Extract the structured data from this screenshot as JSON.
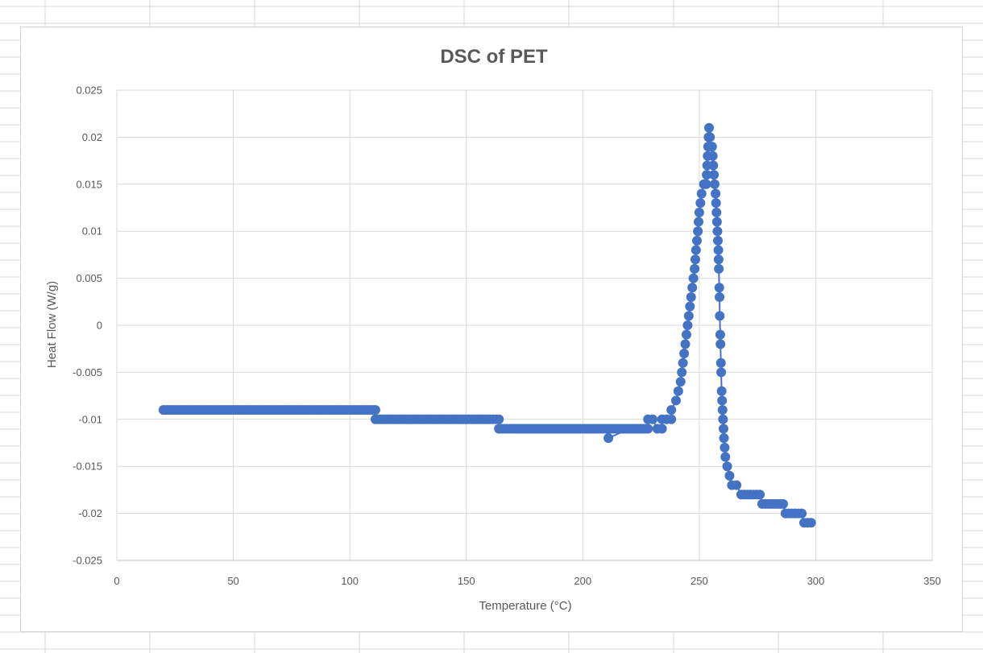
{
  "chart_data": {
    "type": "scatter",
    "title": "DSC of PET",
    "xlabel": "Temperature (°C)",
    "ylabel": "Heat Flow (W/g)",
    "xlim": [
      0,
      350
    ],
    "ylim": [
      -0.025,
      0.025
    ],
    "xticks": [
      0,
      50,
      100,
      150,
      200,
      250,
      300,
      350
    ],
    "yticks": [
      0.025,
      0.02,
      0.015,
      0.01,
      0.005,
      0,
      -0.005,
      -0.01,
      -0.015,
      -0.02,
      -0.025
    ],
    "ytick_labels": [
      "0.025",
      "0.02",
      "0.015",
      "0.01",
      "0.005",
      "0",
      "-0.005",
      "-0.01",
      "-0.015",
      "-0.02",
      "-0.025"
    ],
    "grid": true,
    "legend": "none",
    "marker_color": "#4472C4",
    "series": [
      {
        "values": [
          [
            20,
            -0.009
          ],
          [
            30,
            -0.009
          ],
          [
            40,
            -0.009
          ],
          [
            50,
            -0.009
          ],
          [
            60,
            -0.009
          ],
          [
            70,
            -0.009
          ],
          [
            80,
            -0.009
          ],
          [
            90,
            -0.009
          ],
          [
            100,
            -0.009
          ],
          [
            111,
            -0.009
          ],
          [
            111,
            -0.01
          ],
          [
            120,
            -0.01
          ],
          [
            130,
            -0.01
          ],
          [
            140,
            -0.01
          ],
          [
            150,
            -0.01
          ],
          [
            160,
            -0.01
          ],
          [
            164,
            -0.01
          ],
          [
            164,
            -0.011
          ],
          [
            170,
            -0.011
          ],
          [
            180,
            -0.011
          ],
          [
            190,
            -0.011
          ],
          [
            200,
            -0.011
          ],
          [
            210,
            -0.011
          ],
          [
            220,
            -0.011
          ],
          [
            228,
            -0.011
          ],
          [
            211,
            -0.012
          ],
          [
            228,
            -0.01
          ],
          [
            230,
            -0.01
          ],
          [
            232,
            -0.011
          ],
          [
            234,
            -0.011
          ],
          [
            234,
            -0.01
          ],
          [
            236,
            -0.01
          ],
          [
            238,
            -0.01
          ],
          [
            238,
            -0.009
          ],
          [
            240,
            -0.008
          ],
          [
            241,
            -0.007
          ],
          [
            242,
            -0.006
          ],
          [
            242.5,
            -0.005
          ],
          [
            243,
            -0.004
          ],
          [
            243.5,
            -0.003
          ],
          [
            244,
            -0.002
          ],
          [
            244.5,
            -0.001
          ],
          [
            245,
            0.0
          ],
          [
            245.5,
            0.001
          ],
          [
            246,
            0.002
          ],
          [
            246.5,
            0.003
          ],
          [
            247,
            0.004
          ],
          [
            247.5,
            0.005
          ],
          [
            248,
            0.006
          ],
          [
            248.3,
            0.007
          ],
          [
            248.6,
            0.008
          ],
          [
            249,
            0.009
          ],
          [
            249.4,
            0.01
          ],
          [
            249.7,
            0.011
          ],
          [
            250,
            0.012
          ],
          [
            250.5,
            0.013
          ],
          [
            251,
            0.014
          ],
          [
            252,
            0.015
          ],
          [
            253,
            0.015
          ],
          [
            253.2,
            0.016
          ],
          [
            253.4,
            0.017
          ],
          [
            253.6,
            0.018
          ],
          [
            253.8,
            0.019
          ],
          [
            254,
            0.02
          ],
          [
            254.2,
            0.021
          ],
          [
            254.6,
            0.02
          ],
          [
            255,
            0.019
          ],
          [
            255.5,
            0.019
          ],
          [
            255.8,
            0.018
          ],
          [
            256,
            0.017
          ],
          [
            256.3,
            0.016
          ],
          [
            256.6,
            0.015
          ],
          [
            257,
            0.014
          ],
          [
            257.2,
            0.013
          ],
          [
            257.4,
            0.012
          ],
          [
            257.6,
            0.011
          ],
          [
            257.8,
            0.01
          ],
          [
            258,
            0.009
          ],
          [
            258.2,
            0.008
          ],
          [
            258.3,
            0.007
          ],
          [
            258.4,
            0.006
          ],
          [
            258.6,
            0.004
          ],
          [
            258.7,
            0.003
          ],
          [
            258.8,
            0.001
          ],
          [
            259,
            -0.001
          ],
          [
            259.1,
            -0.002
          ],
          [
            259.3,
            -0.004
          ],
          [
            259.4,
            -0.005
          ],
          [
            259.6,
            -0.007
          ],
          [
            259.8,
            -0.008
          ],
          [
            260,
            -0.009
          ],
          [
            260.2,
            -0.01
          ],
          [
            260.4,
            -0.011
          ],
          [
            260.6,
            -0.012
          ],
          [
            260.9,
            -0.013
          ],
          [
            261.2,
            -0.014
          ],
          [
            262,
            -0.015
          ],
          [
            263,
            -0.016
          ],
          [
            264,
            -0.017
          ],
          [
            266,
            -0.017
          ],
          [
            268,
            -0.018
          ],
          [
            272,
            -0.018
          ],
          [
            276,
            -0.018
          ],
          [
            277,
            -0.019
          ],
          [
            281,
            -0.019
          ],
          [
            286,
            -0.019
          ],
          [
            287,
            -0.02
          ],
          [
            291,
            -0.02
          ],
          [
            294,
            -0.02
          ],
          [
            295,
            -0.021
          ],
          [
            298,
            -0.021
          ]
        ]
      }
    ]
  }
}
